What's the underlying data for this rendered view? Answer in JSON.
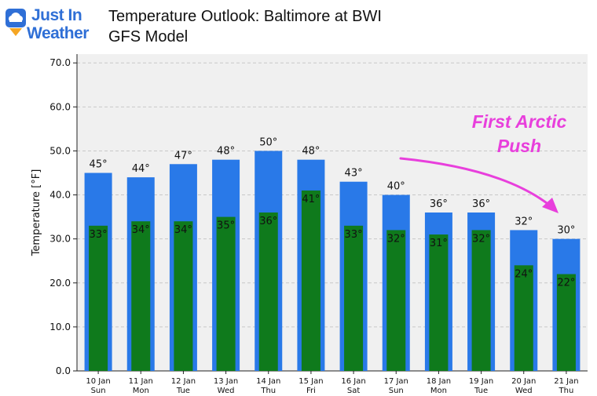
{
  "brand": {
    "line1": "Just In",
    "line2": "Weather"
  },
  "header": {
    "title_line1": "Temperature Outlook: Baltimore at BWI",
    "title_line2": "GFS Model"
  },
  "annotation": {
    "line1": "First Arctic",
    "line2": "Push",
    "color": "#e83fdc"
  },
  "colors": {
    "high": "#2979e8",
    "low": "#0f7a1c",
    "plot_bg": "#f0f0f0"
  },
  "chart_data": {
    "type": "bar",
    "title": "Temperature Outlook: Baltimore at BWI GFS Model",
    "ylabel": "Temperature [°F]",
    "xlabel": "",
    "ylim": [
      0,
      72
    ],
    "yticks": [
      0,
      10,
      20,
      30,
      40,
      50,
      60,
      70
    ],
    "grid": true,
    "categories": [
      [
        "10 Jan",
        "Sun"
      ],
      [
        "11 Jan",
        "Mon"
      ],
      [
        "12 Jan",
        "Tue"
      ],
      [
        "13 Jan",
        "Wed"
      ],
      [
        "14 Jan",
        "Thu"
      ],
      [
        "15 Jan",
        "Fri"
      ],
      [
        "16 Jan",
        "Sat"
      ],
      [
        "17 Jan",
        "Sun"
      ],
      [
        "18 Jan",
        "Mon"
      ],
      [
        "19 Jan",
        "Tue"
      ],
      [
        "20 Jan",
        "Wed"
      ],
      [
        "21 Jan",
        "Thu"
      ]
    ],
    "series": [
      {
        "key": "high",
        "values": [
          45,
          44,
          47,
          48,
          50,
          48,
          43,
          40,
          36,
          36,
          32,
          30
        ]
      },
      {
        "key": "low",
        "values": [
          33,
          34,
          34,
          35,
          36,
          41,
          33,
          32,
          31,
          32,
          24,
          22
        ]
      }
    ]
  }
}
